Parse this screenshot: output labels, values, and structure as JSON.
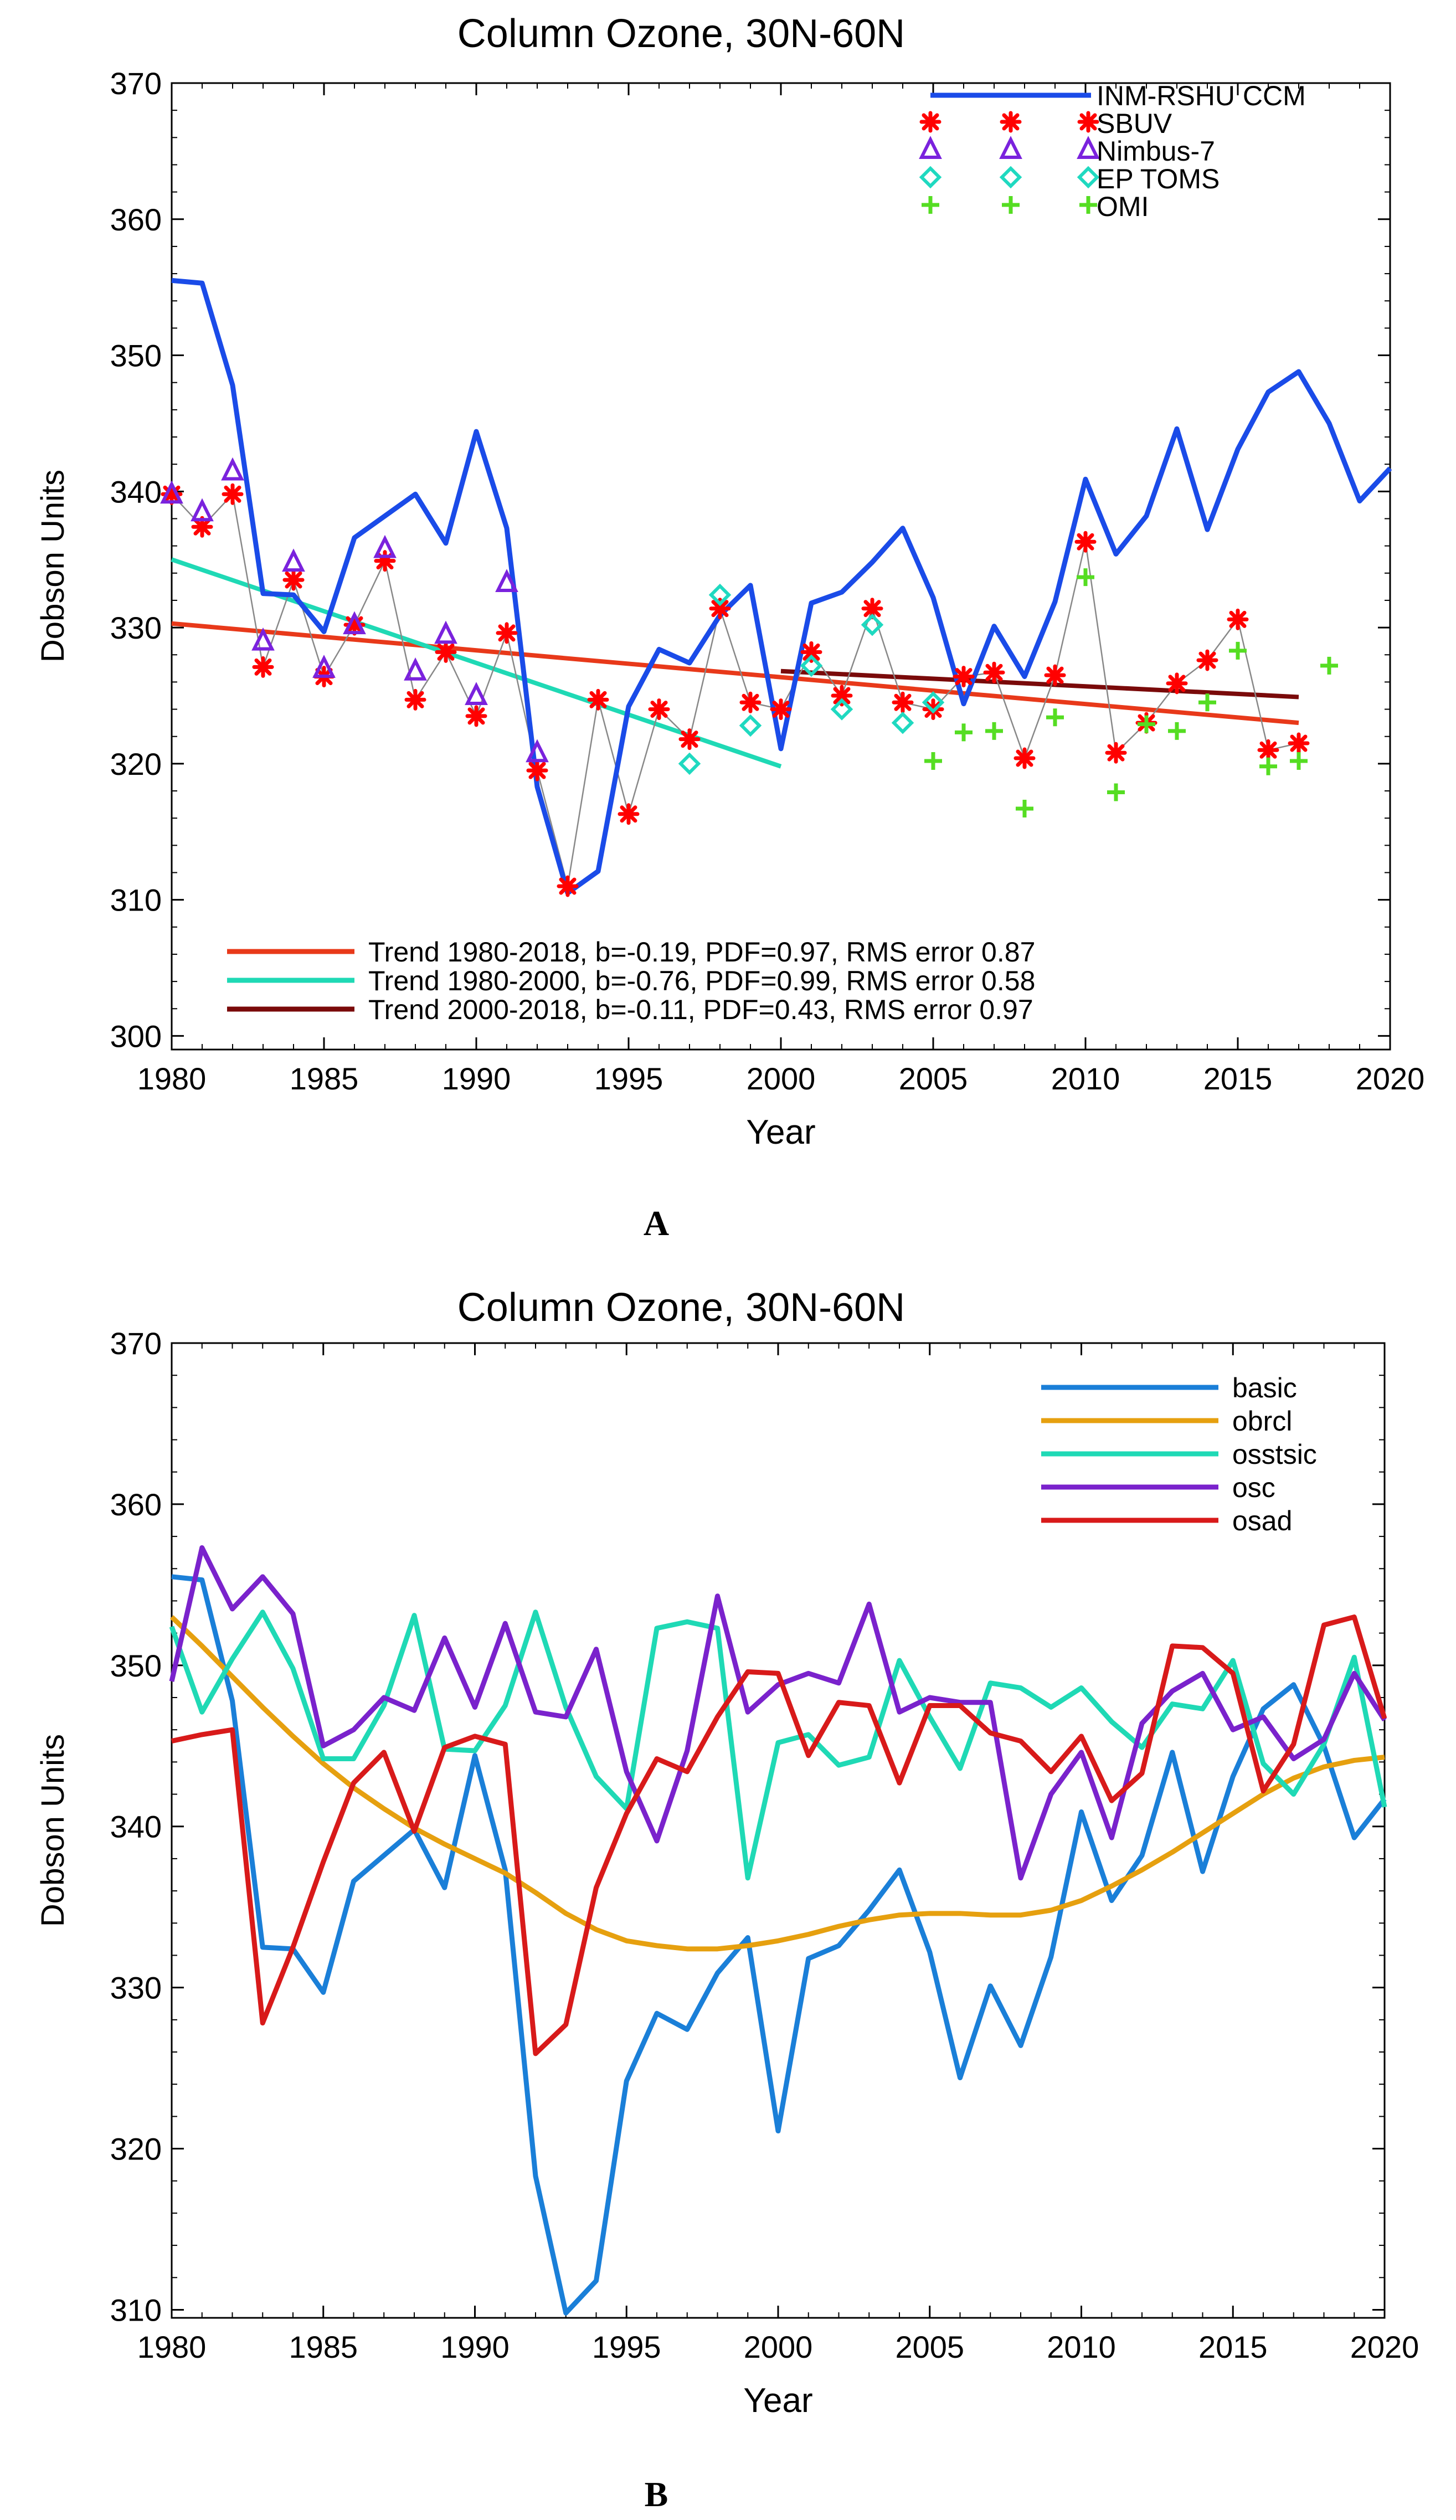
{
  "chart_data": [
    {
      "type": "line",
      "panel_label": "A",
      "title": "Column Ozone, 30N-60N",
      "xlabel": "Year",
      "ylabel": "Dobson Units",
      "xlim": [
        1980,
        2020
      ],
      "ylim": [
        299,
        370
      ],
      "x_ticks": [
        1980,
        1985,
        1990,
        1995,
        2000,
        2005,
        2010,
        2015,
        2020
      ],
      "y_ticks": [
        300,
        310,
        320,
        330,
        340,
        350,
        360,
        370
      ],
      "legend_position": "top-right",
      "series": [
        {
          "name": "INM-RSHU CCM",
          "style": "line",
          "color": "#1a4be8",
          "x": [
            1980,
            1981,
            1982,
            1983,
            1984,
            1985,
            1986,
            1987,
            1988,
            1989,
            1990,
            1991,
            1992,
            1993,
            1994,
            1995,
            1996,
            1997,
            1998,
            1999,
            2000,
            2001,
            2002,
            2003,
            2004,
            2005,
            2006,
            2007,
            2008,
            2009,
            2010,
            2011,
            2012,
            2013,
            2014,
            2015,
            2016,
            2017,
            2018,
            2019,
            2020
          ],
          "values": [
            355.5,
            355.3,
            347.8,
            332.5,
            332.4,
            329.7,
            336.6,
            338.2,
            339.8,
            336.2,
            344.4,
            337.3,
            318.3,
            310.5,
            312.1,
            324.2,
            328.4,
            327.4,
            330.9,
            333.1,
            321.1,
            331.8,
            332.6,
            334.8,
            337.3,
            332.2,
            324.4,
            330.1,
            326.4,
            331.9,
            340.9,
            335.4,
            338.2,
            344.6,
            337.2,
            343.1,
            347.3,
            348.8,
            345.0,
            339.3,
            341.7
          ]
        },
        {
          "name": "SBUV",
          "style": "marker-asterisk",
          "color": "#ff0000",
          "x": [
            1980,
            1981,
            1982,
            1983,
            1984,
            1985,
            1986,
            1987,
            1988,
            1989,
            1990,
            1991,
            1992,
            1993,
            1994,
            1995,
            1996,
            1997,
            1998,
            1999,
            2000,
            2001,
            2002,
            2003,
            2004,
            2005,
            2006,
            2007,
            2008,
            2009,
            2010,
            2011,
            2012,
            2013,
            2014,
            2015,
            2016,
            2017
          ],
          "values": [
            339.8,
            337.4,
            339.8,
            327.1,
            333.5,
            326.4,
            330.2,
            334.9,
            324.7,
            328.2,
            323.5,
            329.6,
            319.5,
            311.0,
            324.7,
            316.3,
            324.0,
            321.8,
            331.4,
            324.5,
            324.0,
            328.2,
            325.0,
            331.4,
            324.5,
            324.0,
            326.4,
            326.7,
            320.4,
            326.5,
            336.3,
            320.8,
            323.0,
            325.9,
            327.6,
            330.6,
            321.0,
            321.5
          ]
        },
        {
          "name": "Nimbus-7",
          "style": "marker-triangle",
          "color": "#7a22dd",
          "x": [
            1980,
            1981,
            1982,
            1983,
            1984,
            1985,
            1986,
            1987,
            1988,
            1989,
            1990,
            1991,
            1992
          ],
          "values": [
            339.8,
            338.5,
            341.5,
            329.0,
            334.8,
            327.0,
            330.2,
            335.8,
            326.8,
            329.5,
            325.0,
            333.3,
            320.8
          ]
        },
        {
          "name": "EP TOMS",
          "style": "marker-diamond",
          "color": "#1fd9c0",
          "x": [
            1997,
            1998,
            1999,
            2001,
            2002,
            2003,
            2004,
            2005
          ],
          "values": [
            320.0,
            332.4,
            322.8,
            327.2,
            324.0,
            330.2,
            323.0,
            324.5
          ]
        },
        {
          "name": "OMI",
          "style": "marker-plus",
          "color": "#55dd22",
          "x": [
            2005,
            2006,
            2007,
            2008,
            2009,
            2010,
            2011,
            2012,
            2013,
            2014,
            2015,
            2016,
            2017,
            2018
          ],
          "values": [
            320.2,
            322.3,
            322.4,
            316.7,
            323.4,
            333.7,
            317.9,
            322.9,
            322.4,
            324.5,
            328.3,
            319.8,
            320.2,
            327.2
          ]
        }
      ],
      "trends": [
        {
          "label": "Trend 1980-2018, b=-0.19, PDF=0.97, RMS error 0.87",
          "color": "#e8391a",
          "x": [
            1980,
            2017
          ],
          "values": [
            330.3,
            323.0
          ]
        },
        {
          "label": "Trend 1980-2000, b=-0.76, PDF=0.99, RMS error 0.58",
          "color": "#1fd9b5",
          "x": [
            1980,
            2000
          ],
          "values": [
            335.0,
            319.8
          ]
        },
        {
          "label": "Trend 2000-2018, b=-0.11, PDF=0.43, RMS error 0.97",
          "color": "#7a0a0a",
          "x": [
            2000,
            2017
          ],
          "values": [
            326.8,
            324.9
          ]
        }
      ]
    },
    {
      "type": "line",
      "panel_label": "B",
      "title": "Column Ozone, 30N-60N",
      "xlabel": "Year",
      "ylabel": "Dobson Units",
      "xlim": [
        1980,
        2020
      ],
      "ylim": [
        309.5,
        370
      ],
      "x_ticks": [
        1980,
        1985,
        1990,
        1995,
        2000,
        2005,
        2010,
        2015,
        2020
      ],
      "y_ticks": [
        310,
        320,
        330,
        340,
        350,
        360,
        370
      ],
      "legend_position": "top-right",
      "x": [
        1980,
        1981,
        1982,
        1983,
        1984,
        1985,
        1986,
        1987,
        1988,
        1989,
        1990,
        1991,
        1992,
        1993,
        1994,
        1995,
        1996,
        1997,
        1998,
        1999,
        2000,
        2001,
        2002,
        2003,
        2004,
        2005,
        2006,
        2007,
        2008,
        2009,
        2010,
        2011,
        2012,
        2013,
        2014,
        2015,
        2016,
        2017,
        2018,
        2019,
        2020
      ],
      "series": [
        {
          "name": "basic",
          "color": "#1a7fd8",
          "values": [
            355.5,
            355.3,
            347.8,
            332.5,
            332.4,
            329.7,
            336.6,
            338.2,
            339.8,
            336.2,
            344.4,
            337.3,
            318.3,
            309.8,
            311.8,
            324.2,
            328.4,
            327.4,
            330.9,
            333.1,
            321.1,
            331.8,
            332.6,
            334.8,
            337.3,
            332.2,
            324.4,
            330.1,
            326.4,
            331.9,
            340.9,
            335.4,
            338.2,
            344.6,
            337.2,
            343.1,
            347.3,
            348.8,
            345.0,
            339.3,
            341.7
          ]
        },
        {
          "name": "obrcl",
          "color": "#e6a00f",
          "values": [
            353.0,
            351.2,
            349.3,
            347.4,
            345.6,
            343.9,
            342.4,
            341.1,
            339.9,
            338.9,
            338.0,
            337.1,
            335.9,
            334.6,
            333.6,
            332.9,
            332.6,
            332.4,
            332.4,
            332.6,
            332.9,
            333.3,
            333.8,
            334.2,
            334.5,
            334.6,
            334.6,
            334.5,
            334.5,
            334.8,
            335.4,
            336.3,
            337.3,
            338.4,
            339.6,
            340.8,
            342.0,
            343.0,
            343.7,
            344.1,
            344.3
          ]
        },
        {
          "name": "osstsic",
          "color": "#1fd9b5",
          "values": [
            352.4,
            347.1,
            350.4,
            353.3,
            349.8,
            344.2,
            344.2,
            347.5,
            353.1,
            344.8,
            344.7,
            347.5,
            353.3,
            347.4,
            343.1,
            341.1,
            352.3,
            352.7,
            352.3,
            336.8,
            345.2,
            345.7,
            343.8,
            344.3,
            350.3,
            346.8,
            343.6,
            348.9,
            348.6,
            347.4,
            348.6,
            346.5,
            344.9,
            347.6,
            347.3,
            350.3,
            343.9,
            342.0,
            345.1,
            350.5,
            341.2
          ]
        },
        {
          "name": "osc",
          "color": "#7a22cc",
          "values": [
            349.0,
            357.3,
            353.5,
            355.5,
            353.2,
            345.0,
            346.0,
            348.0,
            347.2,
            351.7,
            347.4,
            352.6,
            347.1,
            346.8,
            351.0,
            343.4,
            339.1,
            344.7,
            354.3,
            347.1,
            348.8,
            349.5,
            348.9,
            353.8,
            347.1,
            348.0,
            347.7,
            347.7,
            336.8,
            342.0,
            344.6,
            339.3,
            346.4,
            348.4,
            349.5,
            346.0,
            346.8,
            344.2,
            345.4,
            349.5,
            346.6
          ]
        },
        {
          "name": "osad",
          "color": "#d81a1a",
          "values": [
            345.3,
            345.7,
            346.0,
            327.8,
            332.5,
            337.8,
            342.7,
            344.6,
            339.7,
            344.9,
            345.6,
            345.1,
            325.9,
            327.7,
            336.2,
            340.8,
            344.2,
            343.4,
            346.8,
            349.6,
            349.5,
            344.4,
            347.7,
            347.5,
            342.7,
            347.5,
            347.5,
            345.8,
            345.3,
            343.4,
            345.6,
            341.6,
            343.3,
            351.2,
            351.1,
            349.5,
            342.2,
            345.1,
            352.5,
            353.0,
            346.7
          ]
        }
      ]
    }
  ]
}
